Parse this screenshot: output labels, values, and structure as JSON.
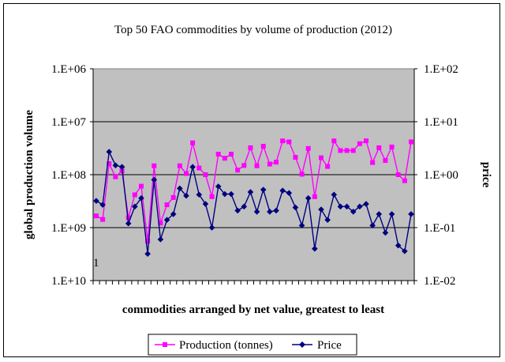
{
  "chart_data": {
    "type": "line",
    "title": "Top 50 FAO commodities by volume of production (2012)",
    "xlabel": "commodities arranged by net value, greatest to least",
    "ylabel_left": "global production volume",
    "ylabel_right": "price",
    "annotation": "1",
    "y_left": {
      "scale": "log",
      "reversed": true,
      "range": [
        1000000,
        10000000000
      ],
      "ticks": [
        1000000,
        10000000,
        100000000,
        1000000000,
        10000000000
      ],
      "tick_labels": [
        "1.E+06",
        "1.E+07",
        "1.E+08",
        "1.E+09",
        "1.E+10"
      ]
    },
    "y_right": {
      "scale": "log",
      "range": [
        0.01,
        100
      ],
      "ticks": [
        100,
        10,
        1,
        0.1,
        0.01
      ],
      "tick_labels": [
        "1.E+02",
        "1.E+01",
        "1.E+00",
        "1.E-01",
        "1.E-02"
      ]
    },
    "grid": true,
    "legend_position": "bottom",
    "x": [
      1,
      2,
      3,
      4,
      5,
      6,
      7,
      8,
      9,
      10,
      11,
      12,
      13,
      14,
      15,
      16,
      17,
      18,
      19,
      20,
      21,
      22,
      23,
      24,
      25,
      26,
      27,
      28,
      29,
      30,
      31,
      32,
      33,
      34,
      35,
      36,
      37,
      38,
      39,
      40,
      41,
      42,
      43,
      44,
      45,
      46,
      47,
      48,
      49,
      50
    ],
    "series": [
      {
        "name": "Production (tonnes)",
        "axis": "left",
        "color": "#ff00ff",
        "marker": "square",
        "values": [
          600000000,
          700000000,
          62000000,
          110000000,
          85000000,
          650000000,
          240000000,
          165000000,
          1800000000,
          68000000,
          820000000,
          370000000,
          270000000,
          68000000,
          95000000,
          25000000,
          75000000,
          100000000,
          260000000,
          41000000,
          49000000,
          41000000,
          82000000,
          67000000,
          31000000,
          68000000,
          29000000,
          63000000,
          58000000,
          23000000,
          24000000,
          47000000,
          98000000,
          32000000,
          260000000,
          48000000,
          70000000,
          23000000,
          35000000,
          35000000,
          35000000,
          26000000,
          23000000,
          59000000,
          31000000,
          54000000,
          30000000,
          100000000,
          130000000,
          24000000
        ]
      },
      {
        "name": "Price",
        "axis": "right",
        "color": "#000080",
        "marker": "diamond",
        "values": [
          0.32,
          0.27,
          2.7,
          1.5,
          1.4,
          0.12,
          0.25,
          0.36,
          0.032,
          0.8,
          0.06,
          0.14,
          0.18,
          0.55,
          0.4,
          1.4,
          0.42,
          0.28,
          0.1,
          0.6,
          0.43,
          0.43,
          0.21,
          0.25,
          0.47,
          0.2,
          0.52,
          0.2,
          0.21,
          0.5,
          0.45,
          0.24,
          0.11,
          0.36,
          0.04,
          0.22,
          0.14,
          0.42,
          0.25,
          0.25,
          0.2,
          0.25,
          0.28,
          0.11,
          0.18,
          0.08,
          0.18,
          0.046,
          0.036,
          0.18
        ]
      }
    ]
  }
}
